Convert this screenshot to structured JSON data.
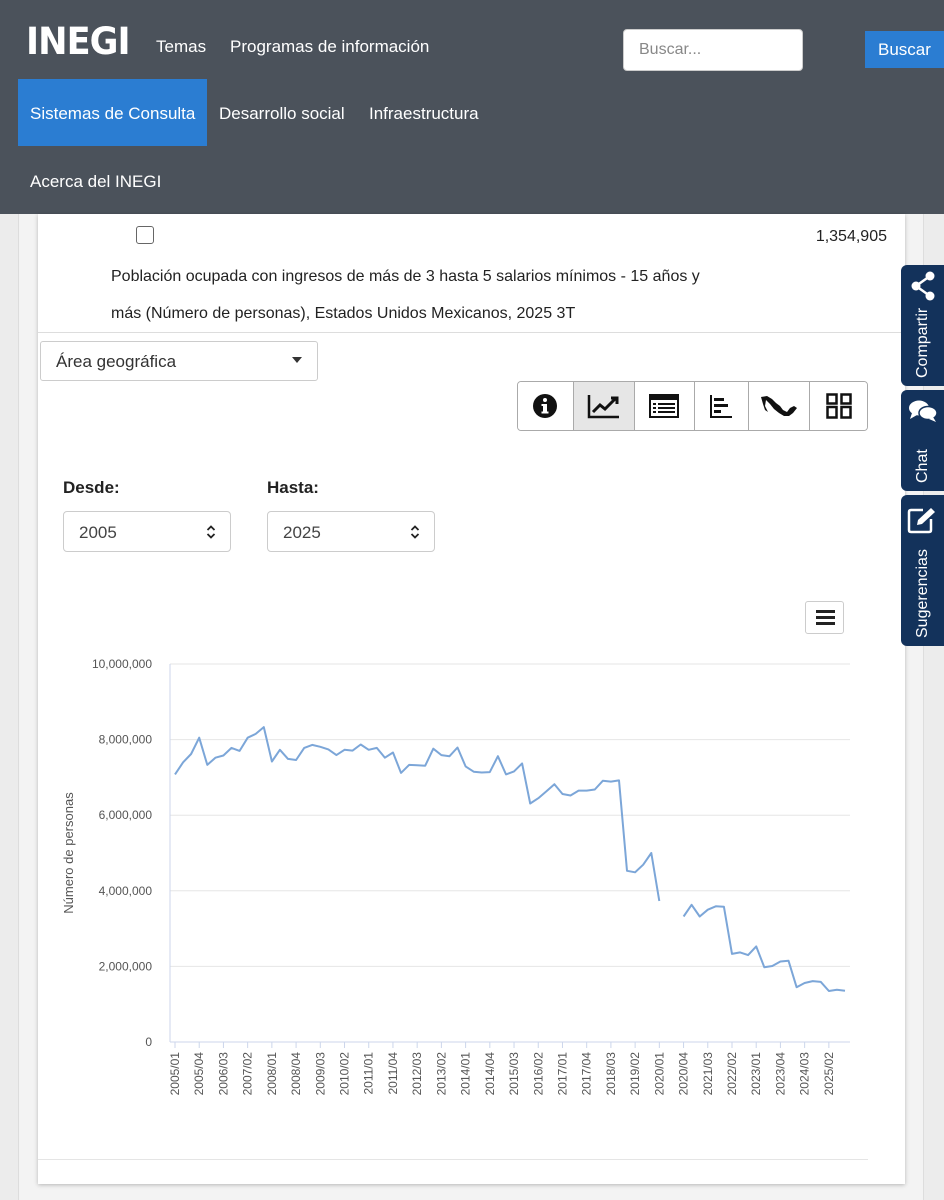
{
  "header": {
    "logo": "INEGI",
    "nav": {
      "temas": "Temas",
      "programas": "Programas de información",
      "sistemas": "Sistemas de Consulta",
      "desarrollo": "Desarrollo social",
      "infraestructura": "Infraestructura",
      "acerca": "Acerca del INEGI"
    },
    "search": {
      "placeholder": "Buscar...",
      "button": "Buscar"
    }
  },
  "indicator": {
    "value": "1,354,905",
    "description": "Población ocupada con ingresos de más de 3 hasta 5 salarios mínimos - 15 años y más (Número de personas), Estados Unidos Mexicanos, 2025 3T",
    "checked": false
  },
  "filters": {
    "geo_select": "Área geográfica",
    "desde_label": "Desde:",
    "desde_value": "2005",
    "hasta_label": "Hasta:",
    "hasta_value": "2025"
  },
  "toolbar": {
    "buttons": [
      {
        "icon": "info-icon",
        "active": false
      },
      {
        "icon": "line-chart-icon",
        "active": true
      },
      {
        "icon": "table-icon",
        "active": false
      },
      {
        "icon": "bar-chart-icon",
        "active": false
      },
      {
        "icon": "mexico-map-icon",
        "active": false
      },
      {
        "icon": "dashboard-icon",
        "active": false
      }
    ]
  },
  "side_tabs": {
    "compartir": "Compartir",
    "chat": "Chat",
    "sugerencias": "Sugerencias"
  },
  "colors": {
    "header_bg": "#4b525b",
    "accent_blue": "#2b7dd2",
    "side_tab_bg": "#13325b",
    "series_line": "#7ca6d8"
  },
  "chart_data": {
    "type": "line",
    "xlabel": "",
    "ylabel": "Número de personas",
    "ylim": [
      0,
      10000000
    ],
    "yticks": [
      "10,000,000",
      "8,000,000",
      "6,000,000",
      "4,000,000",
      "2,000,000",
      "0"
    ],
    "grid": true,
    "xtick_labels": [
      "2005/01",
      "2005/04",
      "2006/03",
      "2007/02",
      "2008/01",
      "2008/04",
      "2009/03",
      "2010/02",
      "2011/01",
      "2011/04",
      "2012/03",
      "2013/02",
      "2014/01",
      "2014/04",
      "2015/03",
      "2016/02",
      "2017/01",
      "2017/04",
      "2018/03",
      "2019/02",
      "2020/01",
      "2020/04",
      "2021/03",
      "2022/02",
      "2023/01",
      "2023/04",
      "2024/03",
      "2025/02"
    ],
    "series": [
      {
        "values": [
          7080000,
          7400000,
          7620000,
          8050000,
          7330000,
          7520000,
          7580000,
          7780000,
          7700000,
          8050000,
          8150000,
          8330000,
          7420000,
          7730000,
          7490000,
          7460000,
          7780000,
          7860000,
          7810000,
          7740000,
          7590000,
          7730000,
          7710000,
          7870000,
          7730000,
          7780000,
          7520000,
          7660000,
          7120000,
          7330000,
          7320000,
          7310000,
          7760000,
          7590000,
          7560000,
          7790000,
          7290000,
          7150000,
          7130000,
          7140000,
          7560000,
          7080000,
          7160000,
          7370000,
          6310000,
          6450000,
          6630000,
          6820000,
          6560000,
          6520000,
          6650000,
          6650000,
          6680000,
          6910000,
          6890000,
          6920000,
          4530000,
          4490000,
          4690000,
          5000000,
          3730000,
          null,
          null,
          3320000,
          3630000,
          3320000,
          3500000,
          3590000,
          3580000,
          2330000,
          2370000,
          2300000,
          2530000,
          1980000,
          2010000,
          2130000,
          2150000,
          1450000,
          1560000,
          1610000,
          1590000,
          1350000,
          1380000,
          1354905
        ]
      }
    ]
  }
}
